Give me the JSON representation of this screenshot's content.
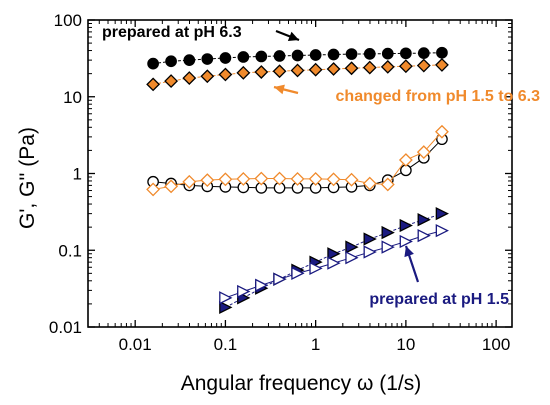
{
  "chart_data": {
    "type": "scatter",
    "title": "",
    "xlabel": "Angular frequency ω (1/s)",
    "ylabel": "G', G'' (Pa)",
    "xscale": "log",
    "yscale": "log",
    "xlim": [
      0.003,
      150
    ],
    "ylim": [
      0.01,
      100
    ],
    "xticks": [
      0.01,
      0.1,
      1,
      10,
      100
    ],
    "xtick_labels": [
      "0.01",
      "0.1",
      "1",
      "10",
      "100"
    ],
    "yticks": [
      0.01,
      0.1,
      1,
      10,
      100
    ],
    "ytick_labels": [
      "0.01",
      "0.1",
      "1",
      "10",
      "100"
    ],
    "grid": false,
    "legend": "none",
    "colors": {
      "ph63_fresh": "#000000",
      "ph15_to_63": "#f08a2c",
      "ph15": "#1a1a80"
    },
    "series": [
      {
        "key": "a",
        "marker": "circle",
        "filled": true,
        "color": "#000000",
        "x": [
          0.0158,
          0.025,
          0.0398,
          0.063,
          0.1,
          0.158,
          0.25,
          0.398,
          0.63,
          1,
          1.58,
          2.5,
          3.98,
          6.3,
          10,
          15.8,
          25.1
        ],
        "y": [
          27,
          29,
          30,
          31,
          32,
          33,
          33.5,
          34,
          34.5,
          35,
          35.5,
          36,
          36.2,
          36.5,
          36.8,
          37,
          37.5
        ]
      },
      {
        "key": "b",
        "marker": "diamond",
        "filled": true,
        "color": "#f08a2c",
        "x": [
          0.0158,
          0.025,
          0.0398,
          0.063,
          0.1,
          0.158,
          0.25,
          0.398,
          0.63,
          1,
          1.58,
          2.5,
          3.98,
          6.3,
          10,
          15.8,
          25.1
        ],
        "y": [
          14.5,
          16,
          17.5,
          18.5,
          19.5,
          20.5,
          21,
          21.5,
          22,
          22.5,
          23,
          23.5,
          24,
          24.5,
          25,
          25.5,
          26
        ]
      },
      {
        "key": "c",
        "marker": "circle",
        "filled": false,
        "color": "#000000",
        "x": [
          0.0158,
          0.025,
          0.0398,
          0.063,
          0.1,
          0.158,
          0.25,
          0.398,
          0.63,
          1,
          1.58,
          2.5,
          3.98,
          6.3,
          10,
          15.8,
          25.1
        ],
        "y": [
          0.78,
          0.74,
          0.7,
          0.68,
          0.67,
          0.66,
          0.65,
          0.65,
          0.65,
          0.65,
          0.66,
          0.67,
          0.7,
          0.82,
          1.1,
          1.6,
          2.8
        ]
      },
      {
        "key": "d",
        "marker": "diamond",
        "filled": false,
        "color": "#f08a2c",
        "x": [
          0.0158,
          0.025,
          0.0398,
          0.063,
          0.1,
          0.158,
          0.25,
          0.398,
          0.63,
          1,
          1.58,
          2.5,
          3.98,
          6.3,
          10,
          15.8,
          25.1
        ],
        "y": [
          0.62,
          0.68,
          0.78,
          0.82,
          0.84,
          0.85,
          0.86,
          0.86,
          0.85,
          0.85,
          0.84,
          0.83,
          0.74,
          0.72,
          1.5,
          1.9,
          3.5
        ]
      },
      {
        "key": "e",
        "marker": "triangle-right",
        "filled": true,
        "color": "#1a1a80",
        "x": [
          0.1,
          0.158,
          0.25,
          0.398,
          0.63,
          1,
          1.58,
          2.5,
          3.98,
          6.3,
          10,
          15.8,
          25.1
        ],
        "y": [
          0.018,
          0.024,
          0.032,
          0.042,
          0.055,
          0.07,
          0.09,
          0.11,
          0.14,
          0.17,
          0.21,
          0.25,
          0.3
        ]
      },
      {
        "key": "f",
        "marker": "triangle-right",
        "filled": false,
        "color": "#1a1a80",
        "x": [
          0.1,
          0.158,
          0.25,
          0.398,
          0.63,
          1,
          1.58,
          2.5,
          3.98,
          6.3,
          10,
          15.8,
          25.1
        ],
        "y": [
          0.024,
          0.029,
          0.035,
          0.042,
          0.05,
          0.058,
          0.068,
          0.08,
          0.095,
          0.11,
          0.13,
          0.155,
          0.18
        ]
      }
    ],
    "annotations": [
      {
        "text": "prepared at pH 6.3",
        "color": "#000000"
      },
      {
        "text": "changed from pH 1.5 to 6.3",
        "color": "#f08a2c"
      },
      {
        "text": "prepared at pH 1.5",
        "color": "#1a1a80"
      }
    ]
  }
}
